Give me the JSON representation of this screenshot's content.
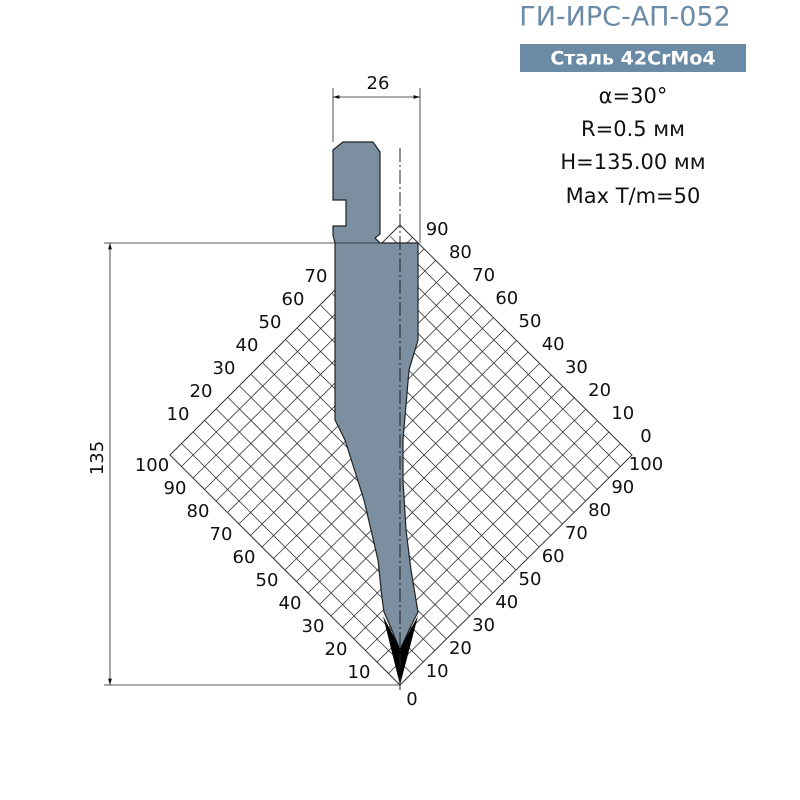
{
  "header": {
    "title": "ГИ-ИРС-АП-052",
    "material": "Сталь 42CrMo4"
  },
  "specs": [
    "α=30°",
    "R=0.5 мм",
    "H=135.00 мм",
    "Max T/m=50"
  ],
  "dimensions": {
    "width": "26",
    "height": "135"
  },
  "scale": {
    "lower_right": [
      10,
      20,
      30,
      40,
      50,
      60,
      70,
      80,
      90,
      100
    ],
    "lower_left": [
      10,
      20,
      30,
      40,
      50,
      60,
      70,
      80,
      90,
      100
    ],
    "upper_right": [
      0,
      10,
      20,
      30,
      40,
      50,
      60,
      70,
      80,
      90
    ],
    "upper_left": [
      10,
      20,
      30,
      40,
      50,
      60,
      70
    ],
    "origin": 0
  }
}
